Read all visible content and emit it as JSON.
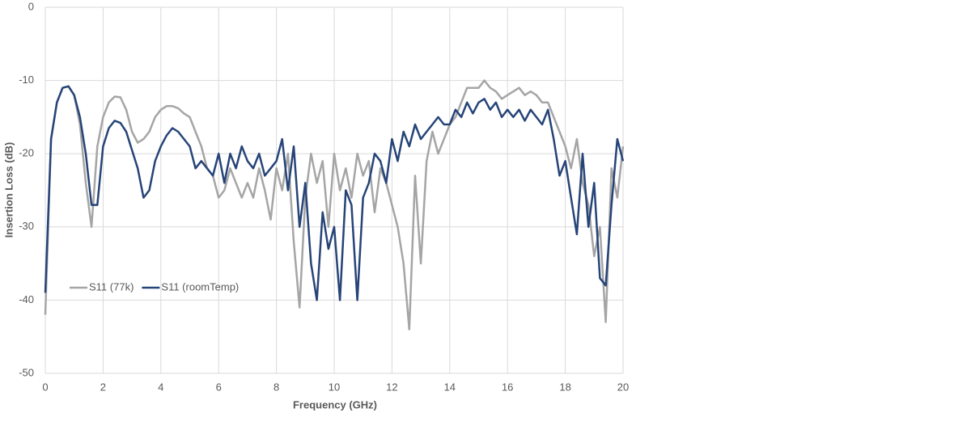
{
  "chart_data": {
    "type": "line",
    "xlabel": "Frequency (GHz)",
    "ylabel": "Insertion Loss (dB)",
    "x": [
      0,
      0.2,
      0.4,
      0.6,
      0.8,
      1,
      1.2,
      1.4,
      1.6,
      1.8,
      2,
      2.2,
      2.4,
      2.6,
      2.8,
      3,
      3.2,
      3.4,
      3.6,
      3.8,
      4,
      4.2,
      4.4,
      4.6,
      4.8,
      5,
      5.2,
      5.4,
      5.6,
      5.8,
      6,
      6.2,
      6.4,
      6.6,
      6.8,
      7,
      7.2,
      7.4,
      7.6,
      7.8,
      8,
      8.2,
      8.4,
      8.6,
      8.8,
      9,
      9.2,
      9.4,
      9.6,
      9.8,
      10,
      10.2,
      10.4,
      10.6,
      10.8,
      11,
      11.2,
      11.4,
      11.6,
      11.8,
      12,
      12.2,
      12.4,
      12.6,
      12.8,
      13,
      13.2,
      13.4,
      13.6,
      13.8,
      14,
      14.2,
      14.4,
      14.6,
      14.8,
      15,
      15.2,
      15.4,
      15.6,
      15.8,
      16,
      16.2,
      16.4,
      16.6,
      16.8,
      17,
      17.2,
      17.4,
      17.6,
      17.8,
      18,
      18.2,
      18.4,
      18.6,
      18.8,
      19,
      19.2,
      19.4,
      19.6,
      19.8,
      20
    ],
    "series": [
      {
        "name": "S11 (77k)",
        "color": "#a5a5a5",
        "values": [
          -42,
          -18,
          -13,
          -11,
          -10.8,
          -12,
          -16,
          -24,
          -30,
          -19,
          -15,
          -13,
          -12.2,
          -12.3,
          -14,
          -17,
          -18.5,
          -18,
          -17,
          -15,
          -14,
          -13.5,
          -13.5,
          -13.8,
          -14.5,
          -15,
          -17,
          -19,
          -22,
          -23,
          -26,
          -25,
          -22,
          -24,
          -26,
          -24,
          -26,
          -22,
          -25,
          -29,
          -22,
          -25,
          -20,
          -32,
          -41,
          -26,
          -20,
          -24,
          -21,
          -30,
          -20,
          -25,
          -22,
          -26,
          -20,
          -23,
          -21,
          -28,
          -22,
          -24,
          -27,
          -30,
          -35,
          -44,
          -23,
          -35,
          -21,
          -17,
          -20,
          -18,
          -16,
          -15,
          -13,
          -11,
          -11,
          -11,
          -10,
          -11,
          -11.5,
          -12.5,
          -12,
          -11.5,
          -11,
          -12,
          -11.5,
          -12,
          -13,
          -13,
          -15,
          -17,
          -19,
          -22,
          -18,
          -24,
          -27,
          -34,
          -30,
          -43,
          -22,
          -26,
          -19
        ]
      },
      {
        "name": "S11 (roomTemp)",
        "color": "#264478",
        "values": [
          -39,
          -18,
          -13,
          -11,
          -10.8,
          -12,
          -15,
          -20,
          -27,
          -27,
          -19,
          -16.5,
          -15.5,
          -15.8,
          -17,
          -19.5,
          -22,
          -26,
          -25,
          -21,
          -19,
          -17.5,
          -16.5,
          -17,
          -18,
          -19,
          -22,
          -21,
          -22,
          -23,
          -20,
          -24,
          -20,
          -22,
          -19,
          -21,
          -22,
          -20,
          -23,
          -22,
          -21,
          -18,
          -25,
          -19,
          -30,
          -24,
          -35,
          -40,
          -28,
          -33,
          -30,
          -40,
          -25,
          -27,
          -40,
          -26,
          -24,
          -20,
          -21,
          -24,
          -18,
          -21,
          -17,
          -19,
          -16,
          -18,
          -17,
          -16,
          -15,
          -16,
          -16,
          -14,
          -15,
          -13,
          -14.5,
          -13,
          -12.5,
          -14,
          -13,
          -15,
          -14,
          -15,
          -14,
          -15.5,
          -14,
          -15,
          -16,
          -14,
          -18,
          -23,
          -21,
          -26,
          -31,
          -20,
          -30,
          -24,
          -37,
          -38,
          -27,
          -18,
          -21
        ]
      }
    ],
    "xlim": [
      0,
      20
    ],
    "xticks": [
      0,
      2,
      4,
      6,
      8,
      10,
      12,
      14,
      16,
      18,
      20
    ],
    "ylim": [
      -50,
      0
    ],
    "yticks": [
      -50,
      -40,
      -30,
      -20,
      -10,
      0
    ],
    "grid": true,
    "legend": "lower left"
  }
}
